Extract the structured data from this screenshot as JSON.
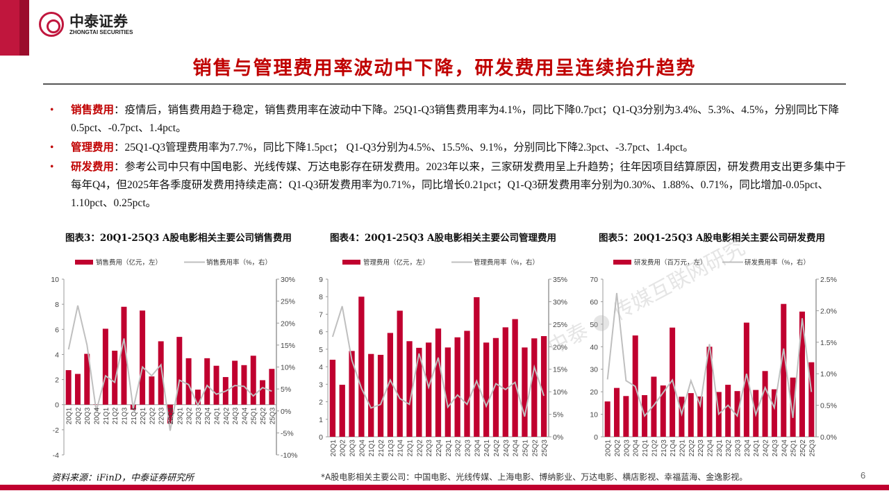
{
  "brand": {
    "name_cn": "中泰证券",
    "name_en": "ZHONGTAI SECURITIES",
    "accent": "#c0163d"
  },
  "title": "销售与管理费用率波动中下降，研发费用呈连续抬升趋势",
  "bullets": [
    {
      "keyword": "销售费用",
      "text": "：疫情后，销售费用趋于稳定，销售费用率在波动中下降。25Q1-Q3销售费用率为4.1%，同比下降0.7pct；Q1-Q3分别为3.4%、5.3%、4.5%，分别同比下降0.5pct、-0.7pct、1.4pct。"
    },
    {
      "keyword": "管理费用",
      "text": "：25Q1-Q3管理费用率为7.7%，同比下降1.5pct； Q1-Q3分别为4.5%、15.5%、9.1%，分别同比下降2.3pct、-3.7pct、1.4pct。"
    },
    {
      "keyword": "研发费用",
      "text": "：参考公司中只有中国电影、光线传媒、万达电影存在研发费用。2023年以来，三家研发费用呈上升趋势；往年因项目结算原因，研发费用支出更多集中于每年Q4，但2025年各季度研发费用持续走高：Q1-Q3研发费用率为0.71%，同比增长0.21pct；Q1-Q3研发费用率分别为0.30%、1.88%、0.71%，同比增加-0.05pct、1.10pct、0.25pct。"
    }
  ],
  "watermark": "中泰 ● 传媒互联网研究",
  "chart_data": [
    {
      "type": "bar+line",
      "title": "图表3：20Q1-25Q3 A股电影相关主要公司销售费用",
      "categories": [
        "20Q1",
        "20Q2",
        "20Q3",
        "20Q4",
        "21Q1",
        "21Q2",
        "21Q3",
        "21Q4",
        "22Q1",
        "22Q2",
        "22Q3",
        "22Q4",
        "23Q1",
        "23Q2",
        "23Q3",
        "23Q4",
        "24Q1",
        "24Q2",
        "24Q3",
        "24Q4",
        "25Q1",
        "25Q2",
        "25Q3"
      ],
      "series": [
        {
          "name": "销售费用（亿元，左）",
          "axis": "left",
          "kind": "bar",
          "color": "#c0002f",
          "values": [
            2.75,
            2.45,
            4.05,
            0.02,
            6.05,
            4.3,
            7.8,
            -0.4,
            7.5,
            2.25,
            5.05,
            -1.5,
            5.4,
            3.7,
            1.2,
            3.7,
            3.1,
            2.2,
            3.5,
            3.15,
            3.9,
            1.95,
            2.85
          ]
        },
        {
          "name": "销售费用率（%，右）",
          "axis": "right",
          "kind": "line",
          "color": "#bfbfbf",
          "values": [
            14,
            24,
            15,
            0,
            8,
            6.5,
            16.5,
            0.5,
            10,
            8,
            10.5,
            -4.5,
            7,
            6,
            1.3,
            5.8,
            3.8,
            4.5,
            5.8,
            5.6,
            3.4,
            5.3,
            4.5
          ]
        }
      ],
      "left_axis": {
        "min": -4,
        "max": 10,
        "ticks": [
          "-4",
          "-2",
          "0",
          "2",
          "4",
          "6",
          "8",
          "10"
        ]
      },
      "right_axis": {
        "min": -10,
        "max": 30,
        "ticks": [
          "-10%",
          "-5%",
          "0%",
          "5%",
          "10%",
          "15%",
          "20%",
          "25%",
          "30%"
        ]
      },
      "legend": "top",
      "grid": false
    },
    {
      "type": "bar+line",
      "title": "图表4：20Q1-25Q3 A股电影相关主要公司管理费用",
      "categories": [
        "20Q1",
        "20Q2",
        "20Q3",
        "20Q4",
        "21Q1",
        "21Q2",
        "21Q3",
        "21Q4",
        "22Q1",
        "22Q2",
        "22Q3",
        "22Q4",
        "23Q1",
        "23Q2",
        "23Q3",
        "23Q4",
        "24Q1",
        "24Q2",
        "24Q3",
        "24Q4",
        "25Q1",
        "25Q2",
        "25Q3"
      ],
      "series": [
        {
          "name": "管理费用（亿元，左）",
          "axis": "left",
          "kind": "bar",
          "color": "#c0002f",
          "values": [
            4.4,
            2.97,
            4.9,
            8.0,
            4.73,
            4.68,
            5.93,
            7.2,
            5.46,
            5.08,
            5.38,
            6.18,
            5.1,
            5.68,
            6.05,
            7.97,
            5.38,
            5.64,
            6.25,
            6.72,
            5.1,
            5.62,
            5.75
          ]
        },
        {
          "name": "管理费用率（%，右）",
          "axis": "right",
          "kind": "line",
          "color": "#bfbfbf",
          "values": [
            22.2,
            29,
            17,
            10.8,
            6.4,
            7.2,
            12.6,
            8.5,
            7.2,
            18.5,
            11,
            17.6,
            6.6,
            9.3,
            7.2,
            12.4,
            6.8,
            11.8,
            10.5,
            12.1,
            4.5,
            15.5,
            9.1
          ]
        }
      ],
      "left_axis": {
        "min": 0,
        "max": 9,
        "ticks": [
          "0",
          "1",
          "2",
          "3",
          "4",
          "5",
          "6",
          "7",
          "8",
          "9"
        ]
      },
      "right_axis": {
        "min": 0,
        "max": 35,
        "ticks": [
          "0%",
          "5%",
          "10%",
          "15%",
          "20%",
          "25%",
          "30%",
          "35%"
        ]
      },
      "legend": "top",
      "grid": false
    },
    {
      "type": "bar+line",
      "title": "图表5：20Q1-25Q3 A股电影相关主要公司研发费用",
      "categories": [
        "20Q1",
        "20Q2",
        "20Q3",
        "20Q4",
        "21Q1",
        "21Q2",
        "21Q3",
        "21Q4",
        "22Q1",
        "22Q2",
        "22Q3",
        "22Q4",
        "23Q1",
        "23Q2",
        "23Q3",
        "23Q4",
        "24Q1",
        "24Q2",
        "24Q3",
        "24Q4",
        "25Q1",
        "25Q2",
        "25Q3"
      ],
      "series": [
        {
          "name": "研发费用（百万元，左）",
          "axis": "left",
          "kind": "bar",
          "color": "#c0002f",
          "values": [
            15.7,
            21.7,
            18.1,
            45,
            18.5,
            26.7,
            22.8,
            48.5,
            17.8,
            19.4,
            17.9,
            40,
            19.9,
            23.1,
            20.3,
            50.7,
            20.8,
            29.2,
            21.1,
            59,
            26.3,
            55.6,
            33.1
          ]
        },
        {
          "name": "研发费用率（%，右）",
          "axis": "right",
          "kind": "line",
          "color": "#bfbfbf",
          "values": [
            0.91,
            2.28,
            0.89,
            0.8,
            0.33,
            0.5,
            0.7,
            0.9,
            0.36,
            0.89,
            0.5,
            1.47,
            0.36,
            0.5,
            0.33,
            1.0,
            0.35,
            0.78,
            0.46,
            1.4,
            0.3,
            1.88,
            0.71
          ]
        }
      ],
      "left_axis": {
        "min": 0,
        "max": 70,
        "ticks": [
          "0",
          "10",
          "20",
          "30",
          "40",
          "50",
          "60",
          "70"
        ]
      },
      "right_axis": {
        "min": 0,
        "max": 2.5,
        "ticks": [
          "0.0%",
          "0.5%",
          "1.0%",
          "1.5%",
          "2.0%",
          "2.5%"
        ]
      },
      "legend": "top",
      "grid": false
    }
  ],
  "footer": {
    "source": "资料来源：iFinD，中泰证券研究所",
    "note": "*A股电影相关主要公司：中国电影、光线传媒、上海电影、博纳影业、万达电影、横店影视、幸福蓝海、金逸影视。",
    "page": "6"
  }
}
